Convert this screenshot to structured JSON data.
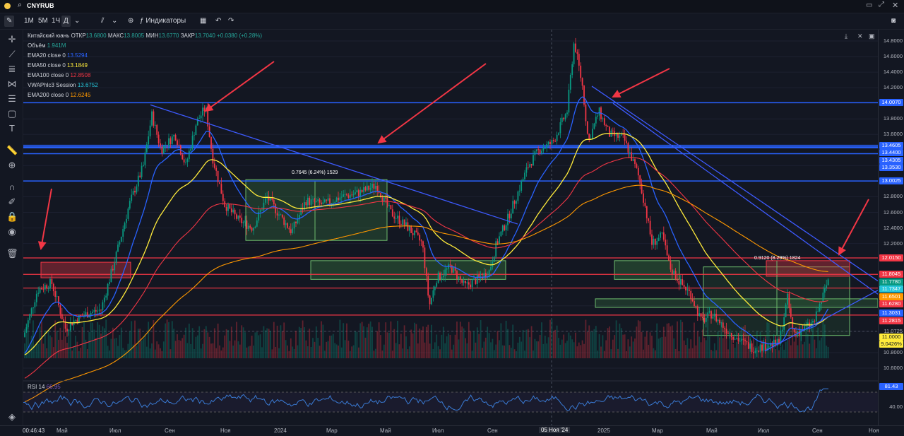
{
  "topbar": {
    "symbol": "CNYRUB"
  },
  "toolbar": {
    "intervals": [
      "1М",
      "5М",
      "1Ч",
      "Д"
    ],
    "indicators_label": "Индикаторы"
  },
  "legend": {
    "title": "Китайский юань",
    "otkr_label": "ОТКР",
    "otkr": "13.6800",
    "maks_label": "МАКС",
    "maks": "13.8005",
    "min_label": "МИН",
    "min": "13.6770",
    "zakr_label": "ЗАКР",
    "zakr": "13.7040",
    "change": "+0.0380 (+0.28%)",
    "volume_label": "Объём",
    "volume": "1.941M",
    "indicators": [
      {
        "name": "EMA20 close 0",
        "value": "13.5294",
        "color": "#2962ff"
      },
      {
        "name": "EMA50 close 0",
        "value": "13.1849",
        "color": "#ffeb3b"
      },
      {
        "name": "EMA100 close 0",
        "value": "12.8508",
        "color": "#f23645"
      },
      {
        "name": "VWAPhlc3 Session",
        "value": "13.6752",
        "color": "#26c6da"
      },
      {
        "name": "EMA200 close 0",
        "value": "12.6245",
        "color": "#ff9800"
      }
    ]
  },
  "annotations": {
    "measure1": "0.7645 (6.24%) 1529",
    "measure2": "0.9120 (8.29%) 1824"
  },
  "price_axis": {
    "labels": [
      "14.8000",
      "14.6000",
      "14.4000",
      "14.2000",
      "13.8000",
      "13.6000",
      "13.2000",
      "12.8000",
      "12.6000",
      "12.4000",
      "12.2000",
      "11.4000",
      "11.0725",
      "10.8000",
      "10.6000"
    ],
    "badges": [
      {
        "text": "14.0070",
        "color": "#2962ff"
      },
      {
        "text": "13.4605",
        "color": "#2962ff"
      },
      {
        "text": "13.4400",
        "color": "#2962ff"
      },
      {
        "text": "13.4305",
        "color": "#2962ff"
      },
      {
        "text": "13.3530",
        "color": "#2962ff"
      },
      {
        "text": "13.0025",
        "color": "#2962ff"
      },
      {
        "text": "12.0150",
        "color": "#f23645"
      },
      {
        "text": "11.8045",
        "color": "#f23645"
      },
      {
        "text": "11.7780",
        "color": "#089981"
      },
      {
        "text": "11.7347",
        "color": "#26c6da"
      },
      {
        "text": "11.6501",
        "color": "#ff9800"
      },
      {
        "text": "11.6280",
        "color": "#f23645"
      },
      {
        "text": "11.3031",
        "color": "#2962ff"
      },
      {
        "text": "11.2815",
        "color": "#f23645"
      },
      {
        "text": "11.0000",
        "color": "#ffeb3b"
      },
      {
        "text": "9.0426%",
        "color": "#ffeb3b"
      }
    ]
  },
  "rsi": {
    "label": "RSI 14",
    "value": "66.95",
    "badge": "81.43",
    "level": "40.00"
  },
  "time_axis": {
    "clock": "00:46:43",
    "labels": [
      "Май",
      "Июл",
      "Сен",
      "Ноя",
      "2024",
      "Мар",
      "Май",
      "Июл",
      "Сен",
      "05 Ноя '24",
      "2025",
      "Мар",
      "Май",
      "Июл",
      "Сен",
      "Ноя"
    ]
  },
  "colors": {
    "background": "#131722",
    "up": "#089981",
    "down": "#f23645",
    "accent": "#2962ff"
  }
}
